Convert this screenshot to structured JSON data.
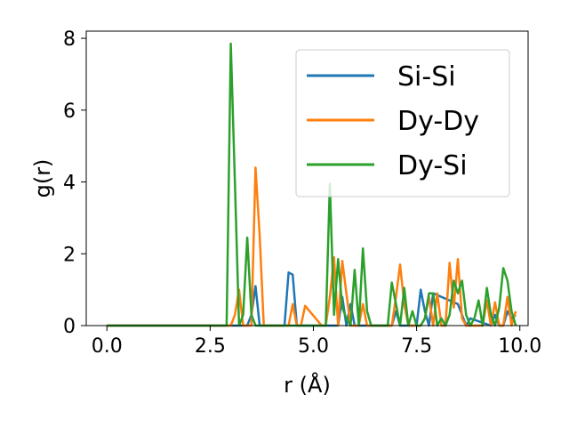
{
  "chart_data": {
    "type": "line",
    "xlabel": "r (Å)",
    "ylabel": "g(r)",
    "xlim": [
      -0.5,
      10.2
    ],
    "ylim": [
      0,
      8.2
    ],
    "xticks": [
      0.0,
      2.5,
      5.0,
      7.5,
      10.0
    ],
    "xtick_labels": [
      "0.0",
      "2.5",
      "5.0",
      "7.5",
      "10.0"
    ],
    "yticks": [
      0,
      2,
      4,
      6,
      8
    ],
    "ytick_labels": [
      "0",
      "2",
      "4",
      "6",
      "8"
    ],
    "grid": false,
    "legend_position": "top-right",
    "series": [
      {
        "name": "Si-Si",
        "color": "#1f77b4",
        "x": [
          0,
          3.4,
          3.5,
          3.6,
          3.7,
          4.3,
          4.4,
          4.5,
          4.6,
          5.3,
          5.6,
          5.7,
          5.8,
          5.9,
          6.0,
          6.6,
          6.9,
          7.0,
          7.1,
          7.2,
          7.5,
          7.6,
          7.7,
          7.8,
          7.9,
          8.5,
          8.6,
          8.7,
          8.8,
          9.3,
          9.4,
          9.5,
          9.6,
          9.7,
          9.8,
          9.9
        ],
        "y": [
          0,
          0,
          0.3,
          1.1,
          0,
          0,
          1.48,
          1.42,
          0,
          0,
          0,
          0.8,
          0,
          0.6,
          0,
          0,
          0,
          0.4,
          0,
          0,
          0,
          1.0,
          0.4,
          0,
          0.9,
          0.6,
          0.3,
          0,
          0.2,
          0,
          0.3,
          0,
          0,
          0.4,
          0.2,
          0.3
        ]
      },
      {
        "name": "Dy-Dy",
        "color": "#ff7f0e",
        "x": [
          0,
          3.0,
          3.1,
          3.2,
          3.3,
          3.5,
          3.6,
          3.7,
          3.8,
          4.3,
          4.4,
          4.5,
          4.6,
          4.7,
          4.8,
          5.2,
          5.3,
          5.4,
          5.5,
          5.6,
          5.7,
          5.8,
          5.9,
          6.1,
          6.2,
          6.3,
          6.4,
          6.9,
          7.0,
          7.1,
          7.2,
          7.3,
          7.6,
          7.7,
          7.8,
          7.9,
          8.0,
          8.1,
          8.2,
          8.3,
          8.4,
          8.5,
          8.6,
          8.7,
          9.1,
          9.2,
          9.3,
          9.4,
          9.5,
          9.6,
          9.7,
          9.8,
          9.9
        ],
        "y": [
          0,
          0,
          0.3,
          1.0,
          0,
          0,
          4.4,
          2.5,
          0,
          0,
          0,
          0.6,
          0,
          0,
          0.55,
          0,
          0,
          0.8,
          1.9,
          0,
          1.8,
          0.9,
          0,
          0,
          0.6,
          0,
          0,
          0,
          0.8,
          1.7,
          0.6,
          0,
          0,
          0.2,
          0.8,
          0,
          0.9,
          0,
          0,
          1.75,
          0.5,
          1.85,
          0.2,
          0,
          0,
          0.7,
          0,
          0.65,
          0,
          0,
          0.8,
          0,
          0.4
        ]
      },
      {
        "name": "Dy-Si",
        "color": "#2ca02c",
        "x": [
          0,
          2.8,
          2.9,
          3.0,
          3.1,
          3.2,
          3.3,
          3.4,
          3.5,
          3.6,
          5.2,
          5.3,
          5.4,
          5.5,
          5.6,
          5.7,
          5.8,
          5.9,
          6.0,
          6.1,
          6.2,
          6.3,
          6.4,
          6.5,
          6.8,
          6.9,
          7.0,
          7.1,
          7.2,
          7.3,
          7.4,
          7.5,
          7.6,
          7.7,
          7.8,
          7.9,
          8.0,
          8.1,
          8.2,
          8.3,
          8.4,
          8.5,
          8.6,
          8.7,
          8.8,
          8.9,
          9.0,
          9.1,
          9.2,
          9.3,
          9.4,
          9.5,
          9.6,
          9.7,
          9.8,
          9.9
        ],
        "y": [
          0,
          0,
          0,
          7.85,
          4.0,
          0,
          0.3,
          2.45,
          0.3,
          0,
          0,
          0,
          3.95,
          0.3,
          1.85,
          0.5,
          0.2,
          0,
          1.55,
          0,
          2.15,
          0.4,
          0,
          0,
          0,
          1.2,
          0.6,
          0,
          1.05,
          0,
          0.4,
          0,
          0,
          0.2,
          0.9,
          0.9,
          0,
          0.2,
          0,
          0.3,
          1.25,
          0.9,
          1.25,
          0.3,
          0,
          0.2,
          0.7,
          0,
          1.05,
          0.3,
          0,
          0.5,
          1.6,
          1.25,
          0.4,
          0
        ]
      }
    ]
  }
}
